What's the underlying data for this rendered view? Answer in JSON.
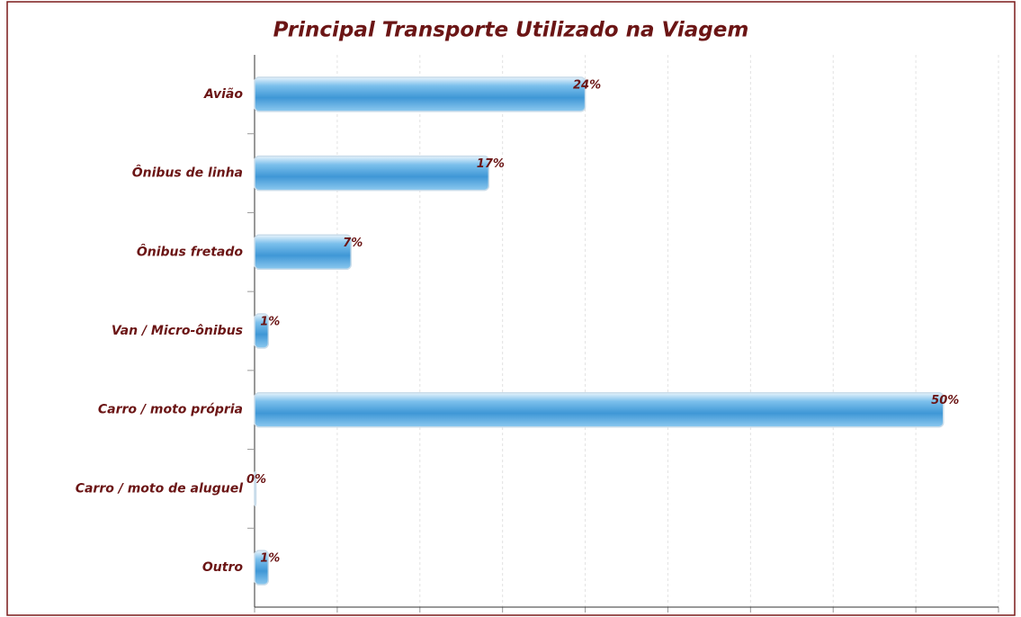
{
  "chart_data": {
    "type": "bar",
    "orientation": "horizontal",
    "title": "Principal Transporte Utilizado na Viagem",
    "categories": [
      "Avião",
      "Ônibus de linha",
      "Ônibus fretado",
      "Van / Micro-ônibus",
      "Carro / moto própria",
      "Carro / moto de aluguel",
      "Outro"
    ],
    "values": [
      24,
      17,
      7,
      1,
      50,
      0,
      1
    ],
    "value_labels": [
      "24%",
      "17%",
      "7%",
      "1%",
      "50%",
      "0%",
      "1%"
    ],
    "color": "#4a9fd8",
    "xlim": [
      0,
      54
    ],
    "xticks": [
      0,
      6,
      12,
      18,
      24,
      30,
      36,
      42,
      48,
      54
    ],
    "grid": true
  }
}
